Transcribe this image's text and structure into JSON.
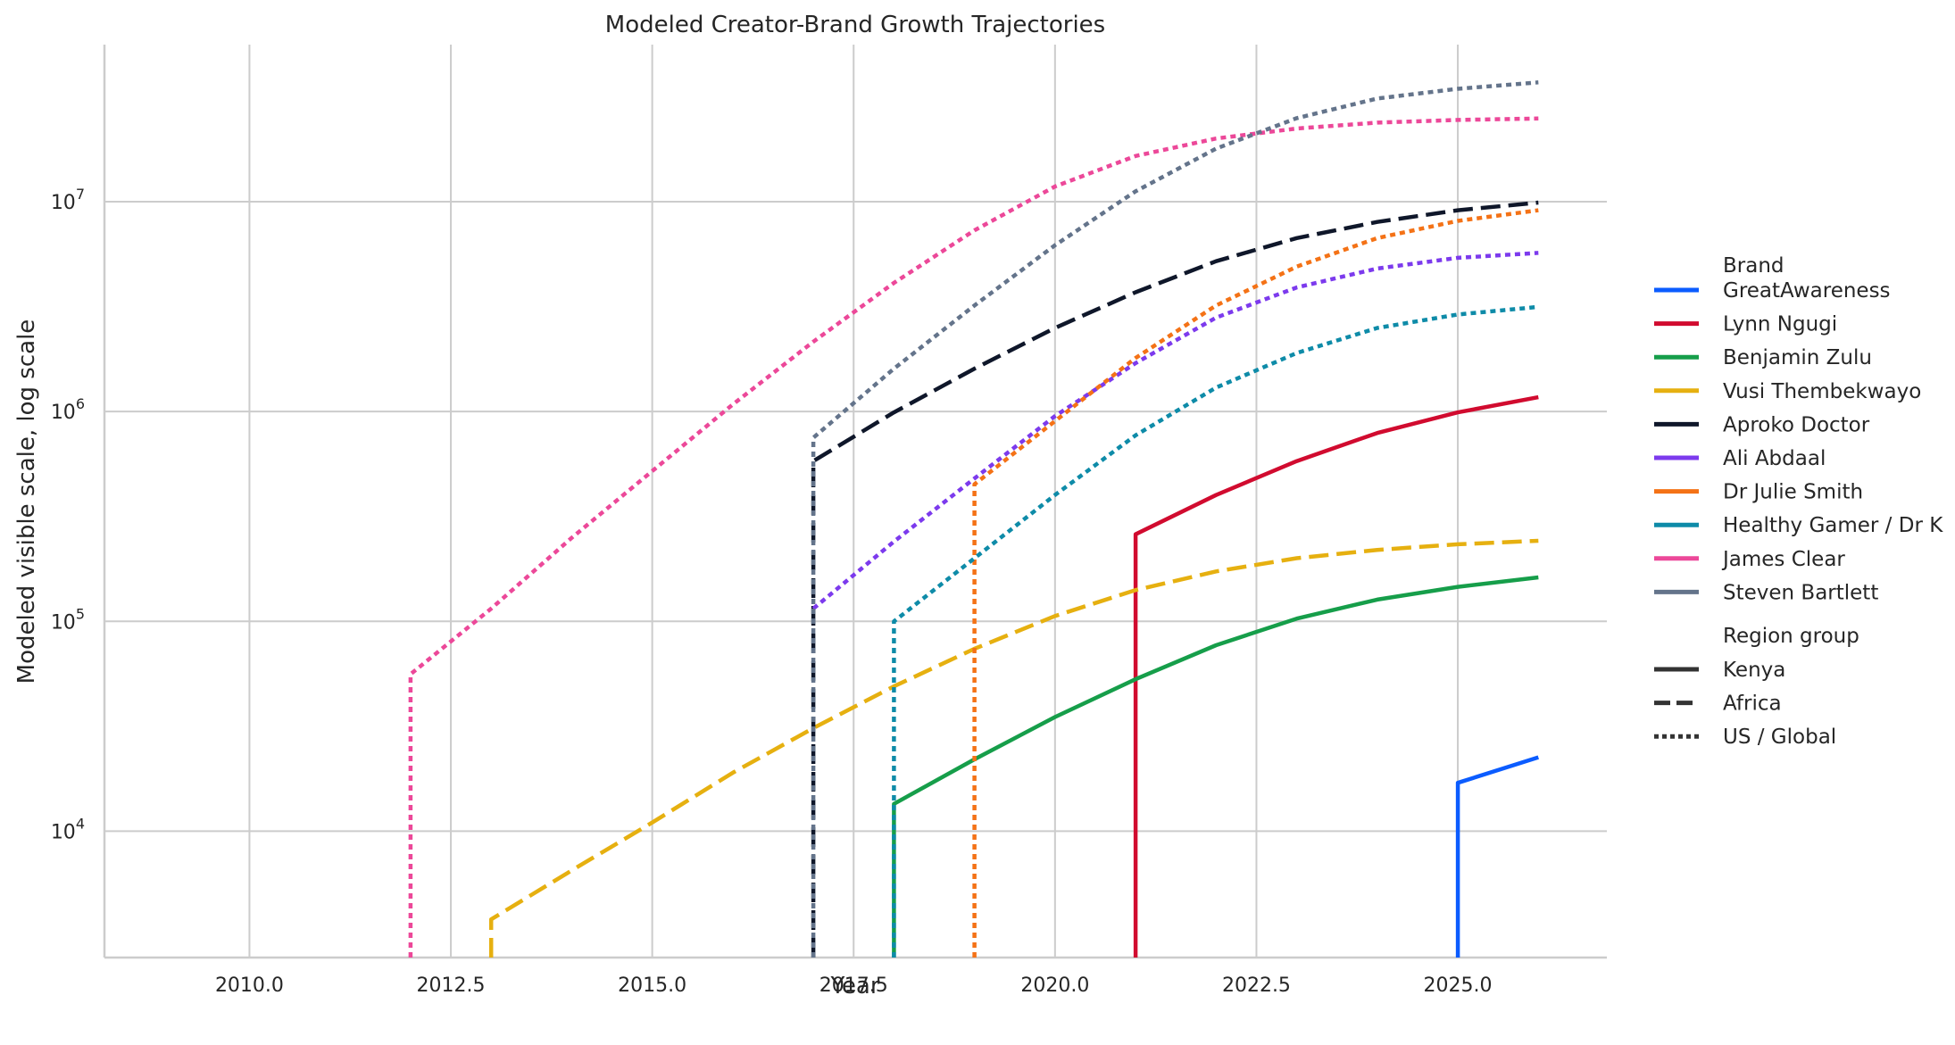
{
  "chart_data": {
    "type": "line",
    "title": "Modeled Creator-Brand Growth Trajectories",
    "xlabel": "Year",
    "ylabel": "Modeled visible scale, log scale",
    "xlim": [
      2008.2,
      2026.85
    ],
    "ylim": [
      2500,
      56000000
    ],
    "yscale": "log",
    "x_ticks": [
      2010.0,
      2012.5,
      2015.0,
      2017.5,
      2020.0,
      2022.5,
      2025.0
    ],
    "x_tick_labels": [
      "2010.0",
      "2012.5",
      "2015.0",
      "2017.5",
      "2020.0",
      "2022.5",
      "2025.0"
    ],
    "y_ticks": [
      10000,
      100000,
      1000000,
      10000000
    ],
    "y_tick_labels": [
      {
        "base": "10",
        "exp": "4"
      },
      {
        "base": "10",
        "exp": "5"
      },
      {
        "base": "10",
        "exp": "6"
      },
      {
        "base": "10",
        "exp": "7"
      }
    ],
    "grid": true,
    "legend": {
      "placement": "right",
      "brand_title": "Brand",
      "region_title": "Region group",
      "region_entries": [
        {
          "label": "Kenya",
          "dash": "solid"
        },
        {
          "label": "Africa",
          "dash": "dashed"
        },
        {
          "label": "US / Global",
          "dash": "dotted"
        }
      ]
    },
    "series": [
      {
        "name": "GreatAwareness",
        "color": "#0b5cff",
        "dash": "solid",
        "x": [
          2025,
          2025,
          2026
        ],
        "y": [
          2500,
          17000,
          22500
        ]
      },
      {
        "name": "Lynn Ngugi",
        "color": "#d10b2f",
        "dash": "solid",
        "x": [
          2021,
          2021,
          2022,
          2023,
          2024,
          2025,
          2026
        ],
        "y": [
          2500,
          260000,
          400000,
          580000,
          790000,
          990000,
          1170000
        ]
      },
      {
        "name": "Benjamin Zulu",
        "color": "#169e4a",
        "dash": "solid",
        "x": [
          2018,
          2018,
          2019,
          2020,
          2021,
          2022,
          2023,
          2024,
          2025,
          2026
        ],
        "y": [
          2500,
          13500,
          22000,
          35000,
          53000,
          77000,
          103000,
          127000,
          146000,
          162000
        ]
      },
      {
        "name": "Vusi Thembekwayo",
        "color": "#e6b010",
        "dash": "dashed",
        "x": [
          2013,
          2013,
          2014,
          2015,
          2016,
          2017,
          2018,
          2019,
          2020,
          2021,
          2022,
          2023,
          2024,
          2025,
          2026
        ],
        "y": [
          2500,
          3800,
          6500,
          11000,
          19000,
          31000,
          49000,
          74000,
          106000,
          141000,
          173000,
          200000,
          219000,
          233000,
          242000
        ]
      },
      {
        "name": "Aproko Doctor",
        "color": "#0f172a",
        "dash": "dashed",
        "x": [
          2017,
          2017,
          2018,
          2019,
          2020,
          2021,
          2022,
          2023,
          2024,
          2025,
          2026
        ],
        "y": [
          2500,
          580000,
          990000,
          1600000,
          2500000,
          3700000,
          5200000,
          6700000,
          8000000,
          9100000,
          9900000
        ]
      },
      {
        "name": "Ali Abdaal",
        "color": "#7c3aed",
        "dash": "dotted",
        "x": [
          2017,
          2018,
          2019,
          2020,
          2021,
          2022,
          2023,
          2024,
          2025,
          2026
        ],
        "y": [
          115000,
          240000,
          480000,
          950000,
          1700000,
          2800000,
          3900000,
          4800000,
          5400000,
          5700000
        ]
      },
      {
        "name": "Dr Julie Smith",
        "color": "#f47216",
        "dash": "dotted",
        "x": [
          2019,
          2019,
          2020,
          2021,
          2022,
          2023,
          2024,
          2025,
          2026
        ],
        "y": [
          2500,
          450000,
          900000,
          1800000,
          3200000,
          4900000,
          6700000,
          8100000,
          9100000
        ]
      },
      {
        "name": "Healthy Gamer / Dr K",
        "color": "#0e8ba8",
        "dash": "dotted",
        "x": [
          2018,
          2018,
          2019,
          2020,
          2021,
          2022,
          2023,
          2024,
          2025,
          2026
        ],
        "y": [
          2500,
          100000,
          200000,
          400000,
          770000,
          1300000,
          1900000,
          2500000,
          2900000,
          3150000
        ]
      },
      {
        "name": "James Clear",
        "color": "#ec4899",
        "dash": "dotted",
        "x": [
          2012,
          2012,
          2013,
          2014,
          2015,
          2016,
          2017,
          2018,
          2019,
          2020,
          2021,
          2022,
          2023,
          2024,
          2025,
          2026
        ],
        "y": [
          2500,
          56000,
          115000,
          250000,
          520000,
          1080000,
          2150000,
          4100000,
          7300000,
          11800000,
          16500000,
          20000000,
          22300000,
          23800000,
          24500000,
          24900000
        ]
      },
      {
        "name": "Steven Bartlett",
        "color": "#64748b",
        "dash": "dotted",
        "x": [
          2017,
          2017,
          2018,
          2019,
          2020,
          2021,
          2022,
          2023,
          2024,
          2025,
          2026
        ],
        "y": [
          2500,
          750000,
          1600000,
          3200000,
          6200000,
          11200000,
          17900000,
          25000000,
          31000000,
          34500000,
          37000000
        ]
      }
    ]
  }
}
